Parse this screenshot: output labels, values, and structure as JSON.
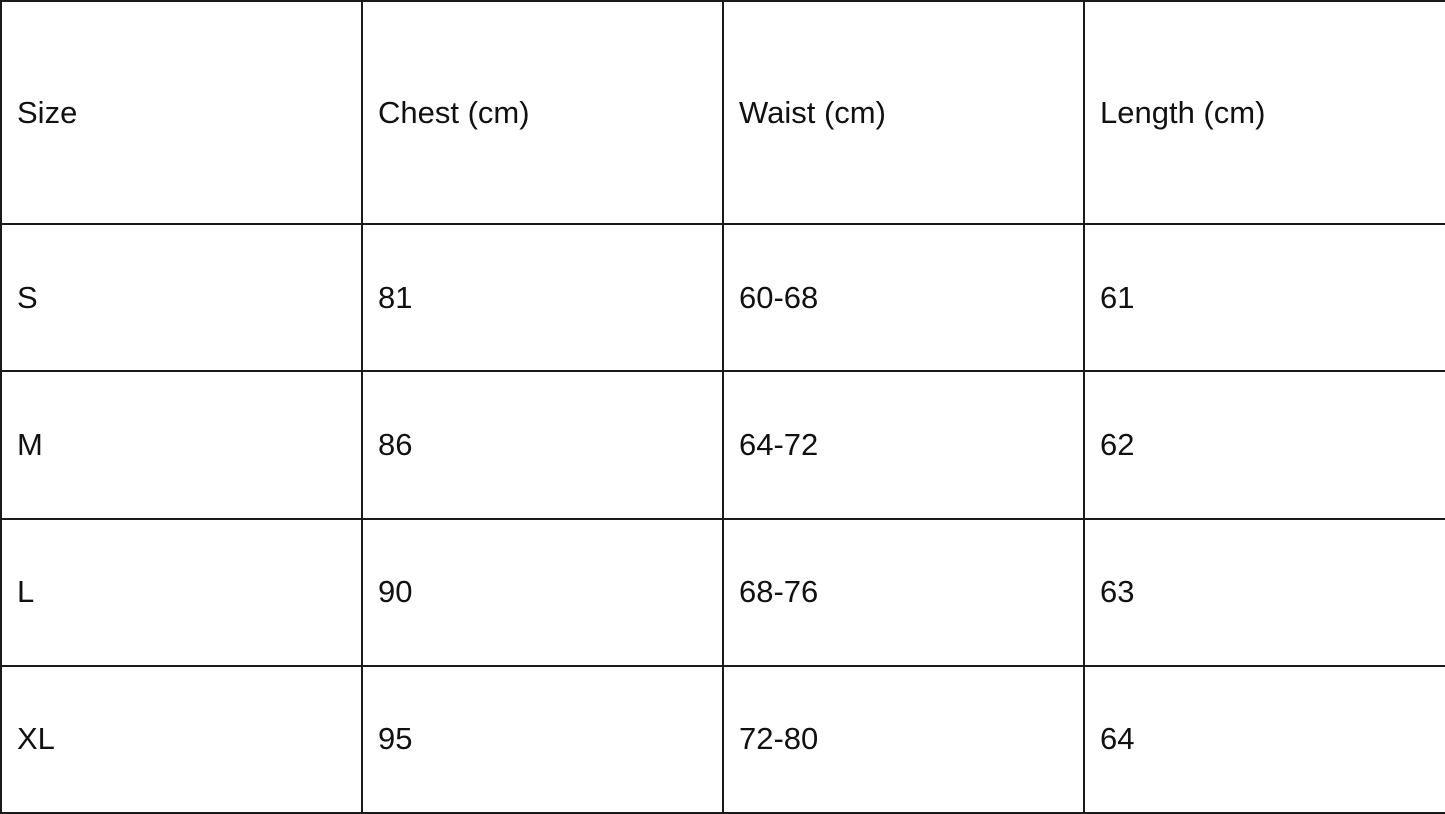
{
  "table": {
    "headers": [
      "Size",
      "Chest (cm)",
      "Waist (cm)",
      "Length (cm)"
    ],
    "rows": [
      [
        "S",
        "81",
        "60-68",
        "61"
      ],
      [
        "M",
        "86",
        "64-72",
        "62"
      ],
      [
        "L",
        "90",
        "68-76",
        "63"
      ],
      [
        "XL",
        "95",
        "72-80",
        "64"
      ]
    ]
  }
}
